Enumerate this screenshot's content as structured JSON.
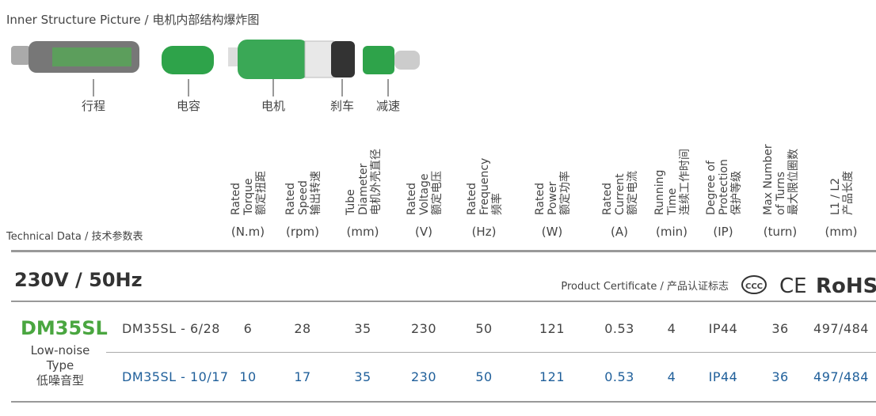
{
  "inner_structure": {
    "title": "Inner Structure Picture / 电机内部结构爆炸图",
    "labels": [
      "行程",
      "电容",
      "电机",
      "刹车",
      "减速"
    ]
  },
  "technical": {
    "title": "Technical Data / 技术参数表",
    "columns": [
      {
        "lines": [
          "Rated",
          "Torque",
          "额定扭距"
        ],
        "unit": "(N.m)"
      },
      {
        "lines": [
          "Rated",
          "Speed",
          "输出转速"
        ],
        "unit": "(rpm)"
      },
      {
        "lines": [
          "Tube",
          "Diameter",
          "电机外壳直径"
        ],
        "unit": "(mm)"
      },
      {
        "lines": [
          "Rated",
          "Voltage",
          "额定电压"
        ],
        "unit": "(V)"
      },
      {
        "lines": [
          "Rated",
          "Frequency",
          "频率"
        ],
        "unit": "(Hz)"
      },
      {
        "lines": [
          "Rated",
          "Power",
          "额定功率"
        ],
        "unit": "(W)"
      },
      {
        "lines": [
          "Rated",
          "Current",
          "额定电流"
        ],
        "unit": "(A)"
      },
      {
        "lines": [
          "Running",
          "Time",
          "连续工作时间"
        ],
        "unit": "(min)"
      },
      {
        "lines": [
          "Degree of",
          "Protection",
          "保护等级"
        ],
        "unit": "(IP)"
      },
      {
        "lines": [
          "Max Number",
          "of Turns",
          "最大限位圈数"
        ],
        "unit": "(turn)"
      },
      {
        "lines": [
          "L1 / L2",
          "产品长度"
        ],
        "unit": "(mm)"
      }
    ]
  },
  "section": {
    "title": "230V / 50Hz",
    "certificate": "Product Certificate / 产品认证标志",
    "marks": [
      "CE",
      "RoHS"
    ]
  },
  "product": {
    "model": "DM35SL",
    "type": [
      "Low-noise",
      "Type",
      "低噪音型"
    ]
  },
  "rows": [
    [
      "DM35SL - 6/28",
      "6",
      "28",
      "35",
      "230",
      "50",
      "121",
      "0.53",
      "4",
      "IP44",
      "36",
      "497/484"
    ],
    [
      "DM35SL - 10/17",
      "10",
      "17",
      "35",
      "230",
      "50",
      "121",
      "0.53",
      "4",
      "IP44",
      "36",
      "497/484"
    ]
  ]
}
